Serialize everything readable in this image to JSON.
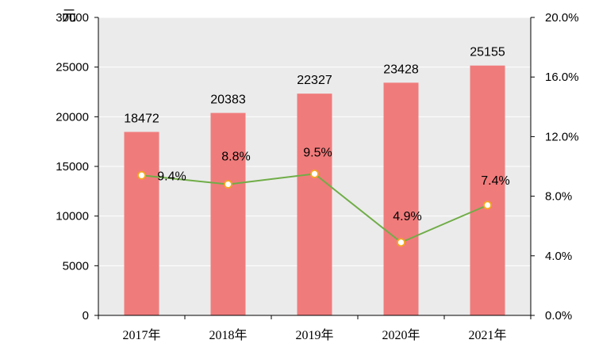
{
  "chart_data": {
    "type": "bar",
    "categories": [
      "2017年",
      "2018年",
      "2019年",
      "2020年",
      "2021年"
    ],
    "series": [
      {
        "type": "bar",
        "axis": "left",
        "values": [
          18472,
          20383,
          22327,
          23428,
          25155
        ],
        "labels": [
          "18472",
          "20383",
          "22327",
          "23428",
          "25155"
        ]
      },
      {
        "type": "line",
        "axis": "right",
        "values": [
          9.4,
          8.8,
          9.5,
          4.9,
          7.4
        ],
        "labels": [
          "9.4%",
          "8.8%",
          "9.5%",
          "4.9%",
          "7.4%"
        ]
      }
    ],
    "y_left": {
      "unit": "元",
      "min": 0,
      "max": 30000,
      "ticks": [
        "0",
        "5000",
        "10000",
        "15000",
        "20000",
        "25000",
        "30000"
      ]
    },
    "y_right": {
      "min": 0,
      "max": 20,
      "ticks": [
        "0.0%",
        "4.0%",
        "8.0%",
        "12.0%",
        "16.0%",
        "20.0%"
      ]
    },
    "grid": true,
    "colors": {
      "bar": "#f07b7b",
      "line": "#70ad47",
      "marker_edge": "#f5a623",
      "marker_fill": "#ffffff",
      "plot_bg": "#ebebeb",
      "grid": "#ffffff"
    }
  }
}
